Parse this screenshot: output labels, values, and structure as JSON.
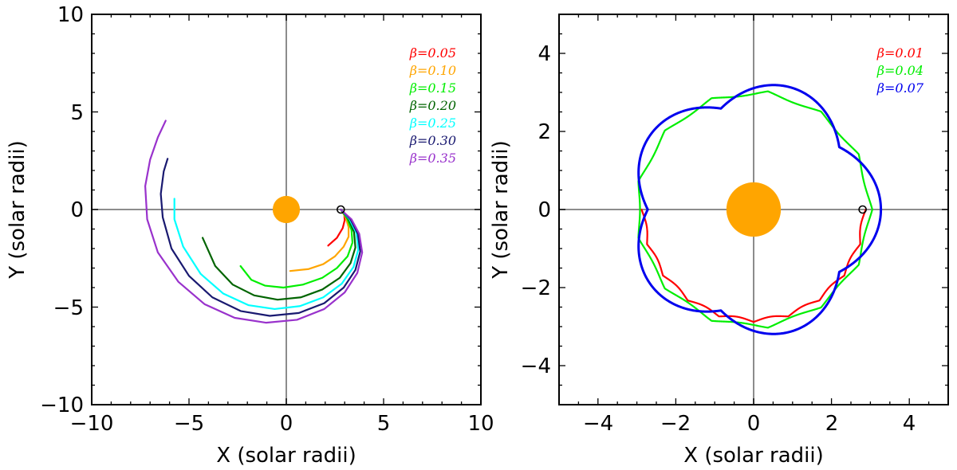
{
  "chart_data": [
    {
      "id": "left",
      "type": "line",
      "xlabel": "X (solar radii)",
      "ylabel": "Y (solar radii)",
      "xlim": [
        -10,
        10
      ],
      "ylim": [
        -10,
        10
      ],
      "xticks": [
        -10,
        -5,
        0,
        5,
        10
      ],
      "yticks": [
        -10,
        -5,
        0,
        5,
        10
      ],
      "xtick_labels": [
        "−10",
        "−5",
        "0",
        "5",
        "10"
      ],
      "ytick_labels": [
        "−10",
        "−5",
        "0",
        "5",
        "10"
      ],
      "minor_step": 1,
      "legend_position": "top-right",
      "sun": {
        "x": 0,
        "y": 0,
        "radius": 0.7,
        "color": "#FFA500"
      },
      "start_marker": {
        "x": 2.8,
        "y": 0,
        "radius": 0.18
      },
      "series": [
        {
          "name": "β=0.05",
          "color": "#ff0000",
          "points": [
            [
              2.8,
              0
            ],
            [
              2.98,
              -0.25
            ],
            [
              3.0,
              -0.55
            ],
            [
              2.9,
              -0.95
            ],
            [
              2.6,
              -1.45
            ],
            [
              2.15,
              -1.85
            ]
          ]
        },
        {
          "name": "β=0.10",
          "color": "#FFA500",
          "points": [
            [
              2.8,
              0
            ],
            [
              3.05,
              -0.4
            ],
            [
              3.2,
              -0.9
            ],
            [
              3.2,
              -1.4
            ],
            [
              2.95,
              -1.9
            ],
            [
              2.5,
              -2.4
            ],
            [
              1.9,
              -2.8
            ],
            [
              1.15,
              -3.05
            ],
            [
              0.2,
              -3.15
            ]
          ]
        },
        {
          "name": "β=0.15",
          "color": "#00ee00",
          "points": [
            [
              2.8,
              0
            ],
            [
              3.12,
              -0.45
            ],
            [
              3.35,
              -1.05
            ],
            [
              3.4,
              -1.7
            ],
            [
              3.15,
              -2.4
            ],
            [
              2.6,
              -3.0
            ],
            [
              1.85,
              -3.5
            ],
            [
              0.85,
              -3.85
            ],
            [
              -0.15,
              -4.0
            ],
            [
              -1.1,
              -3.9
            ],
            [
              -1.8,
              -3.6
            ],
            [
              -2.35,
              -2.9
            ]
          ]
        },
        {
          "name": "β=0.20",
          "color": "#006400",
          "points": [
            [
              2.8,
              0
            ],
            [
              3.2,
              -0.5
            ],
            [
              3.48,
              -1.15
            ],
            [
              3.55,
              -1.95
            ],
            [
              3.3,
              -2.75
            ],
            [
              2.75,
              -3.5
            ],
            [
              1.85,
              -4.1
            ],
            [
              0.75,
              -4.5
            ],
            [
              -0.45,
              -4.62
            ],
            [
              -1.65,
              -4.4
            ],
            [
              -2.75,
              -3.85
            ],
            [
              -3.65,
              -2.9
            ],
            [
              -4.3,
              -1.45
            ]
          ]
        },
        {
          "name": "β=0.25",
          "color": "#00ffff",
          "points": [
            [
              2.8,
              0
            ],
            [
              3.25,
              -0.5
            ],
            [
              3.6,
              -1.2
            ],
            [
              3.7,
              -2.05
            ],
            [
              3.45,
              -2.95
            ],
            [
              2.85,
              -3.8
            ],
            [
              1.9,
              -4.5
            ],
            [
              0.7,
              -4.95
            ],
            [
              -0.6,
              -5.1
            ],
            [
              -1.95,
              -4.9
            ],
            [
              -3.25,
              -4.3
            ],
            [
              -4.4,
              -3.3
            ],
            [
              -5.3,
              -1.9
            ],
            [
              -5.75,
              -0.5
            ],
            [
              -5.75,
              0.55
            ]
          ]
        },
        {
          "name": "β=0.30",
          "color": "#191970",
          "points": [
            [
              2.8,
              0
            ],
            [
              3.3,
              -0.5
            ],
            [
              3.68,
              -1.25
            ],
            [
              3.8,
              -2.15
            ],
            [
              3.55,
              -3.1
            ],
            [
              2.95,
              -4.0
            ],
            [
              1.95,
              -4.8
            ],
            [
              0.65,
              -5.3
            ],
            [
              -0.85,
              -5.45
            ],
            [
              -2.35,
              -5.2
            ],
            [
              -3.8,
              -4.5
            ],
            [
              -5.0,
              -3.4
            ],
            [
              -5.9,
              -2.0
            ],
            [
              -6.35,
              -0.4
            ],
            [
              -6.45,
              0.8
            ],
            [
              -6.3,
              1.95
            ],
            [
              -6.1,
              2.6
            ]
          ]
        },
        {
          "name": "β=0.35",
          "color": "#9932CC",
          "points": [
            [
              2.8,
              0
            ],
            [
              3.35,
              -0.5
            ],
            [
              3.75,
              -1.25
            ],
            [
              3.9,
              -2.2
            ],
            [
              3.65,
              -3.25
            ],
            [
              3.0,
              -4.25
            ],
            [
              1.95,
              -5.1
            ],
            [
              0.55,
              -5.65
            ],
            [
              -1.05,
              -5.8
            ],
            [
              -2.65,
              -5.55
            ],
            [
              -4.2,
              -4.85
            ],
            [
              -5.55,
              -3.7
            ],
            [
              -6.6,
              -2.2
            ],
            [
              -7.15,
              -0.5
            ],
            [
              -7.25,
              1.2
            ],
            [
              -7.0,
              2.55
            ],
            [
              -6.6,
              3.7
            ],
            [
              -6.2,
              4.55
            ]
          ]
        }
      ]
    },
    {
      "id": "right",
      "type": "line",
      "xlabel": "X (solar radii)",
      "ylabel": "Y (solar radii)",
      "xlim": [
        -5,
        5
      ],
      "ylim": [
        -5,
        5
      ],
      "xticks": [
        -4,
        -2,
        0,
        2,
        4
      ],
      "yticks": [
        -4,
        -2,
        0,
        2,
        4
      ],
      "xtick_labels": [
        "−4",
        "−2",
        "0",
        "2",
        "4"
      ],
      "ytick_labels": [
        "−4",
        "−2",
        "0",
        "2",
        "4"
      ],
      "minor_step": 0.5,
      "legend_position": "top-right",
      "sun": {
        "x": 0,
        "y": 0,
        "radius": 0.7,
        "color": "#FFA500"
      },
      "start_marker": {
        "x": 2.8,
        "y": 0,
        "radius": 0.09
      },
      "series": [
        {
          "name": "β=0.01",
          "color": "#ff0000",
          "kind": "wavy",
          "base": 2.88,
          "amp": 0.1,
          "cusps": 20,
          "theta_start": 0,
          "theta_end": -180
        },
        {
          "name": "β=0.04",
          "color": "#00ee00",
          "kind": "loop",
          "base": 3.05,
          "amp": 0.13,
          "cusps": 13,
          "theta_start": 0,
          "theta_end": -360
        },
        {
          "name": "β=0.07",
          "color": "#0000ee",
          "kind": "lobes",
          "base": 2.72,
          "amp": 0.55,
          "lobes": 5,
          "theta_start": 0,
          "theta_end": 360
        }
      ]
    }
  ]
}
